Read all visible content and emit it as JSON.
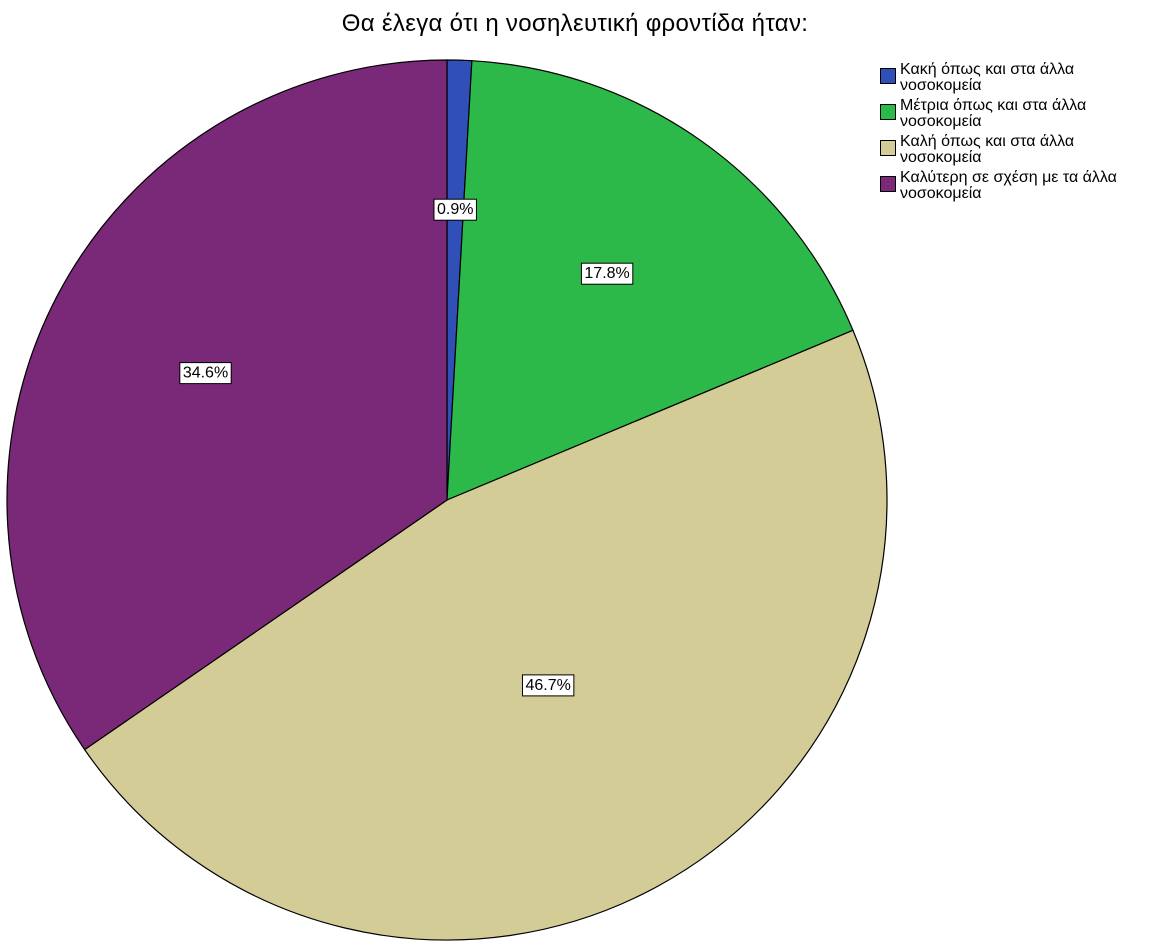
{
  "chart_data": {
    "type": "pie",
    "title": "Θα έλεγα ότι η νοσηλευτική φροντίδα ήταν:",
    "categories": [
      "Κακή όπως και στα άλλα νοσοκομεία",
      "Μέτρια όπως και στα άλλα νοσοκομεία",
      "Καλή όπως και στα άλλα νοσοκομεία",
      "Καλύτερη σε σχέση με τα άλλα νοσοκομεία"
    ],
    "values": [
      0.9,
      17.8,
      46.7,
      34.6
    ],
    "data_labels": [
      "0.9%",
      "17.8%",
      "46.7%",
      "34.6%"
    ],
    "colors": [
      "#3050b8",
      "#2db84a",
      "#d4cc96",
      "#7a2878"
    ],
    "start_angle": "12 o'clock",
    "direction": "clockwise",
    "legend_position": "top-right"
  }
}
